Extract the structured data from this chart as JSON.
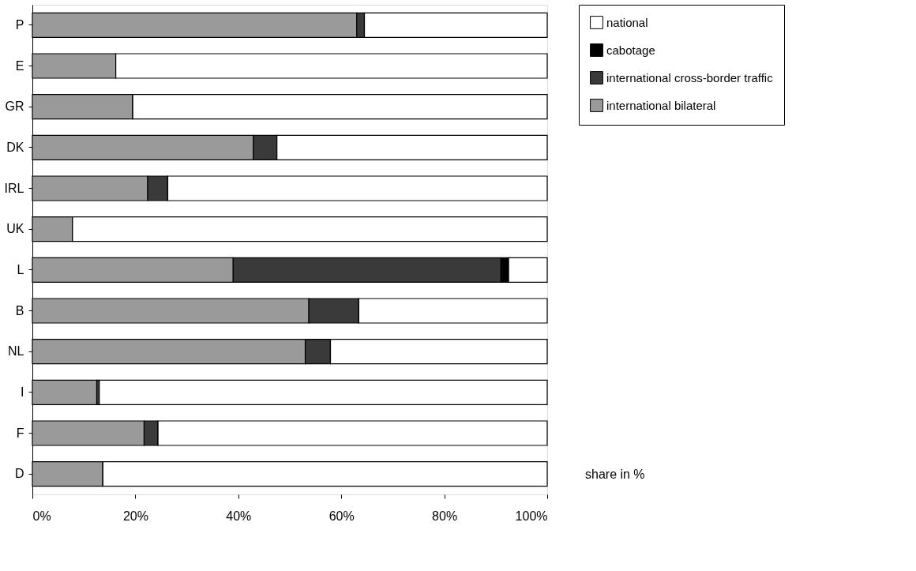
{
  "chart_data": {
    "type": "bar",
    "orientation": "horizontal",
    "stacked": true,
    "categories": [
      "P",
      "E",
      "GR",
      "DK",
      "IRL",
      "UK",
      "L",
      "B",
      "NL",
      "I",
      "F",
      "D"
    ],
    "series": [
      {
        "name": "international bilateral",
        "color": "#9a9a9a",
        "values": [
          63,
          16.2,
          19.5,
          42.9,
          22.4,
          7.8,
          39,
          53.7,
          53,
          12.5,
          21.7,
          13.7
        ]
      },
      {
        "name": "international cross-border traffic",
        "color": "#3a3a3a",
        "values": [
          1.5,
          0,
          0,
          4.6,
          3.9,
          0,
          52,
          9.7,
          4.9,
          0.5,
          2.7,
          0
        ]
      },
      {
        "name": "cabotage",
        "color": "#000000",
        "values": [
          0,
          0,
          0,
          0,
          0,
          0,
          1.5,
          0,
          0,
          0,
          0,
          0
        ]
      },
      {
        "name": "national",
        "color": "#ffffff",
        "values": [
          35.5,
          83.8,
          80.5,
          52.5,
          73.7,
          92.2,
          7.5,
          36.6,
          42.1,
          87,
          75.6,
          86.3
        ]
      }
    ],
    "xlim": [
      0,
      100
    ],
    "xticks": [
      {
        "value": 0,
        "label": "0%"
      },
      {
        "value": 20,
        "label": "20%"
      },
      {
        "value": 40,
        "label": "40%"
      },
      {
        "value": 60,
        "label": "60%"
      },
      {
        "value": 80,
        "label": "80%"
      },
      {
        "value": 100,
        "label": "100%"
      }
    ],
    "legend": "right",
    "grid": false,
    "annotations": [
      "share in %"
    ]
  }
}
